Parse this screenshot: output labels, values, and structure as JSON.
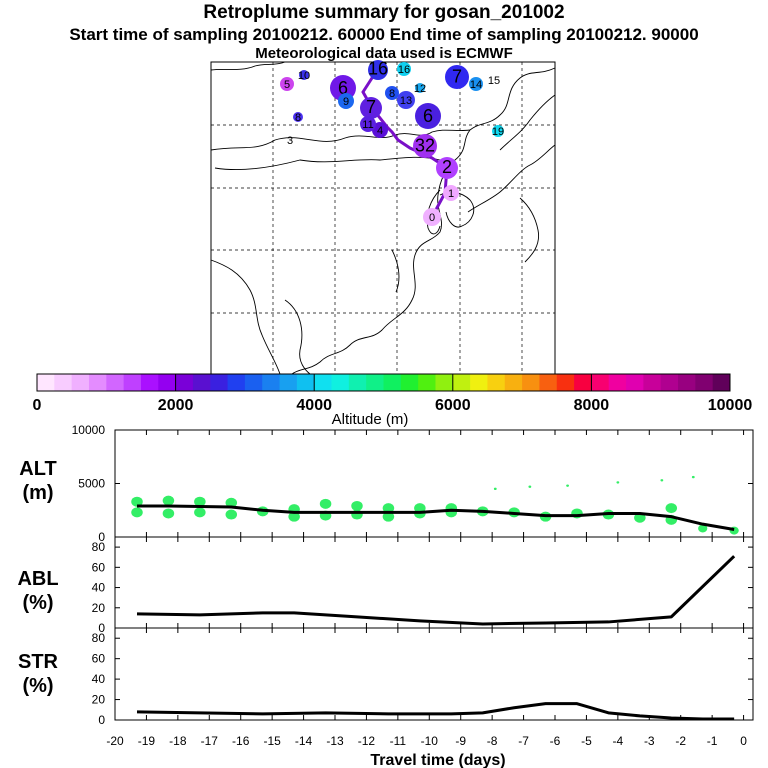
{
  "header": {
    "title": "Retroplume summary for gosan_201002",
    "line2": "Start time of sampling 20100212. 60000     End time of sampling 20100212. 90000",
    "line3": "Meteorological data used is ECMWF"
  },
  "colorbar": {
    "label": "Altitude (m)",
    "ticks": [
      "0",
      "2000",
      "4000",
      "6000",
      "8000",
      "10000"
    ],
    "colors": [
      "#ffe6ff",
      "#f8ccff",
      "#f0b0ff",
      "#e48cff",
      "#d266ff",
      "#bf40ff",
      "#aa10ff",
      "#9400f0",
      "#7a00d8",
      "#5a10d0",
      "#3a20e0",
      "#2040f0",
      "#1a60f0",
      "#1a80f0",
      "#18a0f0",
      "#10c0f0",
      "#10e0f0",
      "#10f0e0",
      "#10f0b0",
      "#10f088",
      "#10f060",
      "#20f030",
      "#50f010",
      "#90f010",
      "#c0f010",
      "#f0f010",
      "#f8d010",
      "#f8b010",
      "#f89010",
      "#f86010",
      "#f83010",
      "#f80040",
      "#f80070",
      "#f000a0",
      "#e000b0",
      "#c8009a",
      "#b00090",
      "#980080",
      "#800070",
      "#60005a"
    ]
  },
  "map": {
    "points": [
      {
        "label": "0",
        "color": "#f0b0ff"
      },
      {
        "label": "1",
        "color": "#f0a8ff"
      },
      {
        "label": "2",
        "color": "#b040ff"
      },
      {
        "label": "32",
        "color": "#a030f0"
      },
      {
        "label": "3",
        "color": "#ffffff"
      },
      {
        "label": "4",
        "color": "#5a10d8"
      },
      {
        "label": "5",
        "color": "#cc44ee"
      },
      {
        "label": "6",
        "color": "#7018e8"
      },
      {
        "label": "6",
        "color": "#4a20e0"
      },
      {
        "label": "7",
        "color": "#3028f0"
      },
      {
        "label": "7",
        "color": "#6020e0"
      },
      {
        "label": "8",
        "color": "#4a30f0"
      },
      {
        "label": "8",
        "color": "#2050f0"
      },
      {
        "label": "9",
        "color": "#1c68f0"
      },
      {
        "label": "10",
        "color": "#3a30e8"
      },
      {
        "label": "11",
        "color": "#5a20e0"
      },
      {
        "label": "12",
        "color": "#1aa8f0"
      },
      {
        "label": "13",
        "color": "#4040f0"
      },
      {
        "label": "14",
        "color": "#1a90f0"
      },
      {
        "label": "15",
        "color": "#1a80f0"
      },
      {
        "label": "16",
        "color": "#10d0f0"
      },
      {
        "label": "16",
        "color": "#3030e8"
      },
      {
        "label": "19",
        "color": "#10d8f0"
      }
    ]
  },
  "chart_data": [
    {
      "type": "line",
      "title": "ALT (m)",
      "xlabel": "Travel time (days)",
      "xlim": [
        -20,
        0.3
      ],
      "ylim": [
        0,
        10000
      ],
      "yticks": [
        "10000",
        "5000",
        "0"
      ],
      "x": [
        -19.3,
        -18.3,
        -17.3,
        -16.3,
        -15.3,
        -14.3,
        -13.3,
        -12.3,
        -11.3,
        -10.3,
        -9.3,
        -8.3,
        -7.3,
        -6.3,
        -5.3,
        -4.3,
        -3.3,
        -2.3,
        -1.3,
        -0.3
      ],
      "series": [
        {
          "name": "mean altitude",
          "values": [
            2900,
            2900,
            2850,
            2800,
            2500,
            2300,
            2300,
            2300,
            2300,
            2300,
            2500,
            2400,
            2200,
            2000,
            2000,
            2200,
            2200,
            1900,
            1200,
            700
          ]
        }
      ],
      "scatter": {
        "x": [
          -19.3,
          -19.3,
          -18.3,
          -18.3,
          -17.3,
          -17.3,
          -16.3,
          -16.3,
          -15.3,
          -14.3,
          -14.3,
          -13.3,
          -13.3,
          -12.3,
          -12.3,
          -11.3,
          -11.3,
          -10.3,
          -10.3,
          -9.3,
          -9.3,
          -8.3,
          -7.3,
          -6.3,
          -5.3,
          -4.3,
          -3.3,
          -2.3,
          -2.3,
          -1.3,
          -0.3,
          -1.6,
          -2.6,
          -4.0,
          -5.6,
          -6.8,
          -7.9
        ],
        "y": [
          2300,
          3300,
          2200,
          3400,
          2300,
          3300,
          2100,
          3200,
          2400,
          1900,
          2600,
          2000,
          3100,
          2100,
          2900,
          1900,
          2700,
          2200,
          2700,
          2300,
          2700,
          2400,
          2300,
          1900,
          2200,
          2100,
          1800,
          1600,
          2700,
          800,
          600,
          5600,
          5300,
          5100,
          4800,
          4700,
          4500
        ]
      }
    },
    {
      "type": "line",
      "title": "ABL (%)",
      "xlabel": "Travel time (days)",
      "xlim": [
        -20,
        0.3
      ],
      "ylim": [
        0,
        90
      ],
      "yticks": [
        "80",
        "60",
        "40",
        "20",
        "0"
      ],
      "x": [
        -19.3,
        -17.3,
        -15.3,
        -14.3,
        -12.3,
        -10.3,
        -8.3,
        -6.3,
        -4.3,
        -2.3,
        -0.3
      ],
      "series": [
        {
          "name": "ABL",
          "values": [
            14,
            13,
            15,
            15,
            11,
            7,
            4,
            5,
            6,
            11,
            71
          ]
        }
      ]
    },
    {
      "type": "line",
      "title": "STR (%)",
      "xlabel": "Travel time (days)",
      "xlim": [
        -20,
        0.3
      ],
      "ylim": [
        0,
        90
      ],
      "yticks": [
        "80",
        "60",
        "40",
        "20",
        "0"
      ],
      "xticks": [
        "-20",
        "-19",
        "-18",
        "-17",
        "-16",
        "-15",
        "-14",
        "-13",
        "-12",
        "-11",
        "-10",
        "-9",
        "-8",
        "-7",
        "-6",
        "-5",
        "-4",
        "-3",
        "-2",
        "-1",
        "0"
      ],
      "x": [
        -19.3,
        -17.3,
        -15.3,
        -13.3,
        -11.3,
        -9.3,
        -8.3,
        -7.3,
        -6.3,
        -5.3,
        -4.3,
        -3.3,
        -2.3,
        -1.3,
        -0.3
      ],
      "series": [
        {
          "name": "STR",
          "values": [
            8,
            7,
            6,
            7,
            6,
            6,
            7,
            12,
            16,
            16,
            7,
            4,
            2,
            1,
            1
          ]
        }
      ]
    }
  ]
}
